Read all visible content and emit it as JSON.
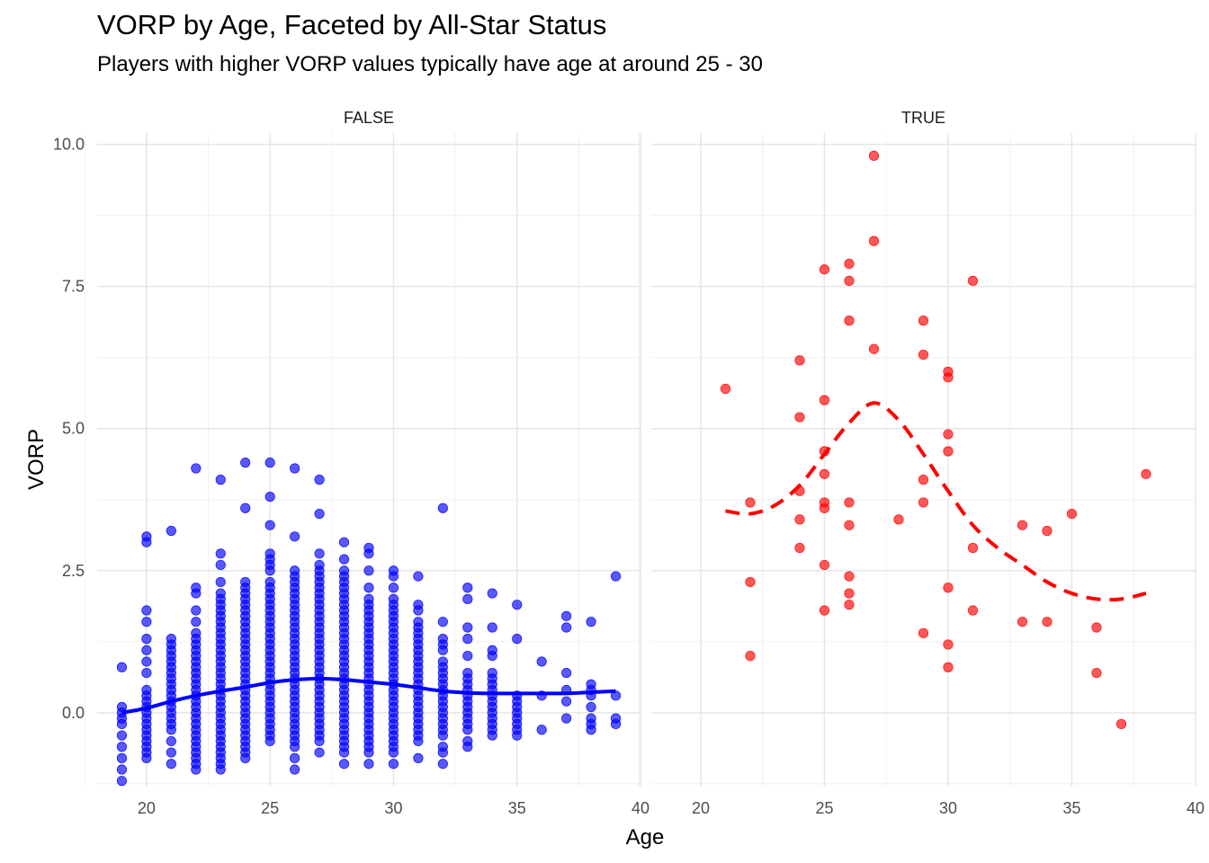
{
  "title": "VORP by Age, Faceted by All-Star Status",
  "subtitle": "Players with higher VORP values typically have age at around 25 - 30",
  "chart_data": {
    "type": "scatter",
    "title": "VORP by Age, Faceted by All-Star Status",
    "subtitle": "Players with higher VORP values typically have age at around 25 - 30",
    "xlabel": "Age",
    "ylabel": "VORP",
    "xlim": [
      18,
      40
    ],
    "ylim": [
      -1.3,
      10.2
    ],
    "x_ticks": [
      20,
      25,
      30,
      35,
      40
    ],
    "y_ticks": [
      0.0,
      2.5,
      5.0,
      7.5,
      10.0
    ],
    "y_tick_labels": [
      "0.0",
      "2.5",
      "5.0",
      "7.5",
      "10.0"
    ],
    "grid": true,
    "facets": [
      {
        "label": "FALSE",
        "color": "#0000ff",
        "trend_style": "solid",
        "trend": [
          [
            19,
            0.0
          ],
          [
            20,
            0.08
          ],
          [
            21,
            0.2
          ],
          [
            22,
            0.3
          ],
          [
            23,
            0.38
          ],
          [
            24,
            0.45
          ],
          [
            25,
            0.53
          ],
          [
            26,
            0.58
          ],
          [
            27,
            0.6
          ],
          [
            28,
            0.58
          ],
          [
            29,
            0.54
          ],
          [
            30,
            0.5
          ],
          [
            31,
            0.44
          ],
          [
            32,
            0.38
          ],
          [
            33,
            0.35
          ],
          [
            34,
            0.34
          ],
          [
            35,
            0.34
          ],
          [
            36,
            0.34
          ],
          [
            37,
            0.34
          ],
          [
            38,
            0.36
          ],
          [
            39,
            0.38
          ]
        ],
        "columns": [
          {
            "age": 19,
            "values": [
              0.8,
              0.1,
              0.0,
              -0.1,
              -0.2,
              -0.4,
              -0.6,
              -0.8,
              -1.0,
              -1.2
            ]
          },
          {
            "age": 20,
            "values": [
              3.1,
              3.0,
              1.8,
              1.6,
              1.3,
              1.1,
              0.9,
              0.7,
              0.4,
              0.3,
              0.2,
              0.1,
              0.0,
              -0.1,
              -0.2,
              -0.3,
              -0.4,
              -0.5,
              -0.6,
              -0.7,
              -0.8
            ]
          },
          {
            "age": 21,
            "values": [
              3.2,
              1.3,
              1.2,
              1.1,
              1.0,
              0.9,
              0.8,
              0.7,
              0.6,
              0.5,
              0.4,
              0.3,
              0.2,
              0.1,
              0.0,
              -0.1,
              -0.2,
              -0.3,
              -0.5,
              -0.7,
              -0.9
            ]
          },
          {
            "age": 22,
            "values": [
              4.3,
              2.2,
              2.1,
              1.8,
              1.6,
              1.4,
              1.3,
              1.2,
              1.1,
              1.0,
              0.9,
              0.8,
              0.7,
              0.6,
              0.5,
              0.4,
              0.3,
              0.2,
              0.1,
              0.0,
              -0.1,
              -0.2,
              -0.3,
              -0.4,
              -0.5,
              -0.6,
              -0.7,
              -0.8,
              -0.9,
              -1.0
            ]
          },
          {
            "age": 23,
            "values": [
              4.1,
              2.8,
              2.6,
              2.3,
              2.1,
              2.0,
              1.9,
              1.8,
              1.7,
              1.6,
              1.5,
              1.4,
              1.3,
              1.2,
              1.1,
              1.0,
              0.9,
              0.8,
              0.7,
              0.6,
              0.5,
              0.4,
              0.3,
              0.2,
              0.1,
              0.0,
              -0.1,
              -0.2,
              -0.3,
              -0.4,
              -0.5,
              -0.6,
              -0.7,
              -0.8,
              -0.9,
              -1.0
            ]
          },
          {
            "age": 24,
            "values": [
              4.4,
              3.6,
              2.3,
              2.2,
              2.1,
              2.0,
              1.9,
              1.8,
              1.7,
              1.6,
              1.5,
              1.4,
              1.3,
              1.2,
              1.1,
              1.0,
              0.9,
              0.8,
              0.7,
              0.6,
              0.5,
              0.4,
              0.3,
              0.2,
              0.1,
              0.0,
              -0.1,
              -0.2,
              -0.3,
              -0.4,
              -0.5,
              -0.6,
              -0.7,
              -0.8
            ]
          },
          {
            "age": 25,
            "values": [
              4.4,
              3.8,
              3.3,
              2.8,
              2.7,
              2.6,
              2.5,
              2.3,
              2.2,
              2.1,
              2.0,
              1.9,
              1.8,
              1.7,
              1.6,
              1.5,
              1.4,
              1.3,
              1.2,
              1.1,
              1.0,
              0.9,
              0.8,
              0.7,
              0.6,
              0.5,
              0.4,
              0.3,
              0.2,
              0.1,
              0.0,
              -0.1,
              -0.2,
              -0.3,
              -0.4,
              -0.5
            ]
          },
          {
            "age": 26,
            "values": [
              4.3,
              3.1,
              2.5,
              2.4,
              2.3,
              2.2,
              2.1,
              2.0,
              1.9,
              1.8,
              1.7,
              1.6,
              1.5,
              1.4,
              1.3,
              1.2,
              1.1,
              1.0,
              0.9,
              0.8,
              0.7,
              0.6,
              0.5,
              0.4,
              0.3,
              0.2,
              0.1,
              0.0,
              -0.1,
              -0.2,
              -0.3,
              -0.4,
              -0.5,
              -0.6,
              -0.8,
              -1.0
            ]
          },
          {
            "age": 27,
            "values": [
              4.1,
              3.5,
              2.8,
              2.6,
              2.5,
              2.4,
              2.3,
              2.2,
              2.1,
              2.0,
              1.9,
              1.8,
              1.7,
              1.6,
              1.5,
              1.4,
              1.3,
              1.2,
              1.1,
              1.0,
              0.9,
              0.8,
              0.7,
              0.6,
              0.5,
              0.4,
              0.3,
              0.2,
              0.1,
              0.0,
              -0.1,
              -0.2,
              -0.3,
              -0.4,
              -0.5,
              -0.7
            ]
          },
          {
            "age": 28,
            "values": [
              3.0,
              2.7,
              2.5,
              2.4,
              2.3,
              2.2,
              2.1,
              2.0,
              1.9,
              1.8,
              1.7,
              1.6,
              1.5,
              1.4,
              1.3,
              1.2,
              1.1,
              1.0,
              0.9,
              0.8,
              0.7,
              0.6,
              0.5,
              0.4,
              0.3,
              0.2,
              0.1,
              0.0,
              -0.1,
              -0.2,
              -0.3,
              -0.4,
              -0.5,
              -0.6,
              -0.7,
              -0.9
            ]
          },
          {
            "age": 29,
            "values": [
              2.9,
              2.8,
              2.5,
              2.2,
              2.0,
              1.9,
              1.8,
              1.7,
              1.6,
              1.5,
              1.4,
              1.3,
              1.2,
              1.1,
              1.0,
              0.9,
              0.8,
              0.7,
              0.6,
              0.5,
              0.4,
              0.3,
              0.2,
              0.1,
              0.0,
              -0.1,
              -0.2,
              -0.3,
              -0.4,
              -0.5,
              -0.6,
              -0.7,
              -0.9
            ]
          },
          {
            "age": 30,
            "values": [
              2.5,
              2.4,
              2.2,
              2.0,
              1.9,
              1.8,
              1.7,
              1.6,
              1.5,
              1.4,
              1.3,
              1.2,
              1.1,
              1.0,
              0.9,
              0.8,
              0.7,
              0.6,
              0.5,
              0.4,
              0.3,
              0.2,
              0.1,
              0.0,
              -0.1,
              -0.2,
              -0.3,
              -0.4,
              -0.5,
              -0.6,
              -0.7,
              -0.9
            ]
          },
          {
            "age": 31,
            "values": [
              2.4,
              1.9,
              1.8,
              1.6,
              1.5,
              1.4,
              1.3,
              1.2,
              1.1,
              1.0,
              0.9,
              0.8,
              0.7,
              0.6,
              0.5,
              0.4,
              0.3,
              0.2,
              0.1,
              0.0,
              -0.1,
              -0.2,
              -0.3,
              -0.4,
              -0.5,
              -0.8
            ]
          },
          {
            "age": 32,
            "values": [
              3.6,
              1.6,
              1.3,
              1.2,
              1.1,
              0.9,
              0.8,
              0.7,
              0.6,
              0.5,
              0.4,
              0.3,
              0.2,
              0.1,
              0.0,
              -0.1,
              -0.2,
              -0.3,
              -0.4,
              -0.6,
              -0.7,
              -0.9
            ]
          },
          {
            "age": 33,
            "values": [
              2.2,
              2.0,
              1.5,
              1.3,
              1.0,
              0.7,
              0.6,
              0.5,
              0.4,
              0.3,
              0.2,
              0.1,
              0.0,
              -0.1,
              -0.2,
              -0.3,
              -0.5,
              -0.6
            ]
          },
          {
            "age": 34,
            "values": [
              2.1,
              1.5,
              1.1,
              1.0,
              0.7,
              0.6,
              0.5,
              0.4,
              0.3,
              0.2,
              0.1,
              0.0,
              -0.1,
              -0.2,
              -0.3,
              -0.4
            ]
          },
          {
            "age": 35,
            "values": [
              1.9,
              1.3,
              0.3,
              0.2,
              0.1,
              0.0,
              -0.1,
              -0.2,
              -0.3,
              -0.4
            ]
          },
          {
            "age": 36,
            "values": [
              0.9,
              0.3,
              -0.3
            ]
          },
          {
            "age": 37,
            "values": [
              1.7,
              1.5,
              0.7,
              0.4,
              0.2,
              -0.1
            ]
          },
          {
            "age": 38,
            "values": [
              1.6,
              0.5,
              0.4,
              0.3,
              0.1,
              -0.1,
              -0.2,
              -0.3
            ]
          },
          {
            "age": 39,
            "values": [
              2.4,
              0.3,
              -0.1,
              -0.2
            ]
          }
        ]
      },
      {
        "label": "TRUE",
        "color": "#ff0000",
        "trend_style": "dashed",
        "trend": [
          [
            21,
            3.55
          ],
          [
            22,
            3.5
          ],
          [
            23,
            3.65
          ],
          [
            24,
            4.0
          ],
          [
            25,
            4.55
          ],
          [
            26,
            5.1
          ],
          [
            27,
            5.45
          ],
          [
            28,
            5.15
          ],
          [
            29,
            4.55
          ],
          [
            30,
            3.9
          ],
          [
            31,
            3.3
          ],
          [
            32,
            2.9
          ],
          [
            33,
            2.6
          ],
          [
            34,
            2.3
          ],
          [
            35,
            2.1
          ],
          [
            36,
            2.0
          ],
          [
            37,
            2.0
          ],
          [
            38,
            2.1
          ]
        ],
        "points": [
          [
            21,
            5.7
          ],
          [
            22,
            3.7
          ],
          [
            22,
            2.3
          ],
          [
            22,
            1.0
          ],
          [
            24,
            6.2
          ],
          [
            24,
            5.2
          ],
          [
            24,
            3.9
          ],
          [
            24,
            3.4
          ],
          [
            24,
            2.9
          ],
          [
            25,
            7.8
          ],
          [
            25,
            5.5
          ],
          [
            25,
            4.6
          ],
          [
            25,
            4.2
          ],
          [
            25,
            3.7
          ],
          [
            25,
            3.6
          ],
          [
            25,
            2.6
          ],
          [
            25,
            1.8
          ],
          [
            26,
            7.9
          ],
          [
            26,
            7.6
          ],
          [
            26,
            6.9
          ],
          [
            26,
            3.7
          ],
          [
            26,
            3.3
          ],
          [
            26,
            2.4
          ],
          [
            26,
            2.1
          ],
          [
            26,
            1.9
          ],
          [
            27,
            9.8
          ],
          [
            27,
            8.3
          ],
          [
            27,
            6.4
          ],
          [
            28,
            3.4
          ],
          [
            29,
            6.9
          ],
          [
            29,
            6.3
          ],
          [
            29,
            4.1
          ],
          [
            29,
            3.7
          ],
          [
            29,
            1.4
          ],
          [
            30,
            6.0
          ],
          [
            30,
            5.9
          ],
          [
            30,
            4.9
          ],
          [
            30,
            4.6
          ],
          [
            30,
            2.2
          ],
          [
            30,
            1.2
          ],
          [
            30,
            0.8
          ],
          [
            31,
            7.6
          ],
          [
            31,
            2.9
          ],
          [
            31,
            1.8
          ],
          [
            33,
            3.3
          ],
          [
            33,
            1.6
          ],
          [
            34,
            3.2
          ],
          [
            34,
            1.6
          ],
          [
            35,
            3.5
          ],
          [
            36,
            1.5
          ],
          [
            36,
            0.7
          ],
          [
            37,
            -0.2
          ],
          [
            38,
            4.2
          ]
        ]
      }
    ]
  }
}
